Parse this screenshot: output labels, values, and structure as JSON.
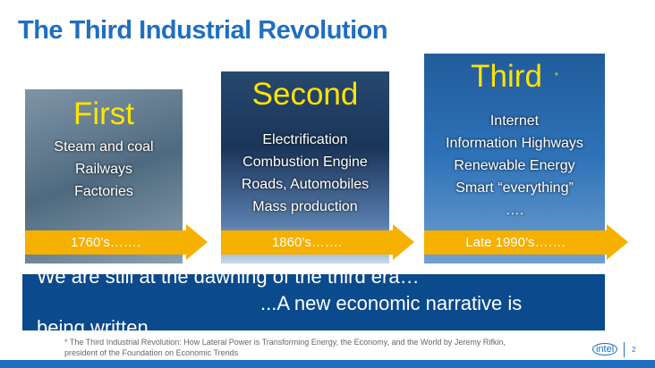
{
  "title": "The Third Industrial Revolution",
  "eras": [
    {
      "name": "First",
      "items": [
        "Steam and coal",
        "Railways",
        "Factories"
      ],
      "date": "1760’s……."
    },
    {
      "name": "Second",
      "items": [
        "Electrification",
        "Combustion Engine",
        "Roads, Automobiles",
        "Mass production"
      ],
      "date": "1860’s……."
    },
    {
      "name": "Third",
      "footnote_mark": "*",
      "items": [
        "Internet",
        "Information Highways",
        "Renewable Energy",
        "Smart “everything”",
        "…."
      ],
      "date": "Late 1990’s……."
    }
  ],
  "message": {
    "line1": "We are still at the dawning of the third era…",
    "line2": "...A new economic narrative is",
    "line3": "being written"
  },
  "footnote": {
    "line1": "* The Third Industrial Revolution: How Lateral Power is Transforming Energy, the Economy, and the World by Jeremy Rifkin,",
    "line2": "president of the Foundation on Economic Trends"
  },
  "logo": "intel",
  "page_number": "2",
  "colors": {
    "title": "#1e6fc0",
    "accent": "#f5b000",
    "era_title": "#ffe400",
    "message_bg": "#0b4a8c"
  }
}
